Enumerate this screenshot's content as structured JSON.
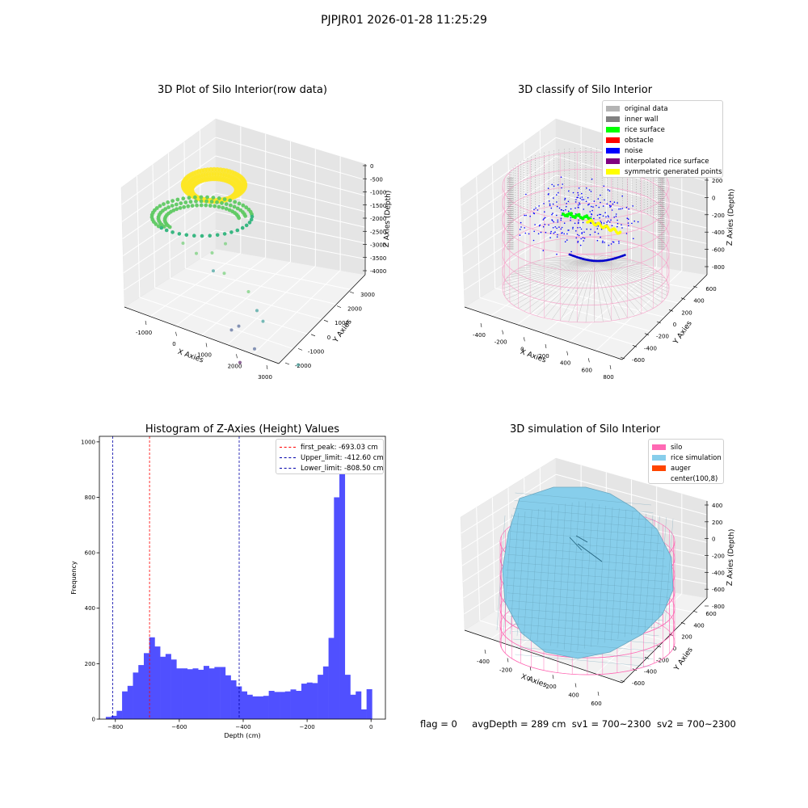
{
  "suptitle": "PJPJR01 2026-01-28 11:25:29",
  "footer": {
    "flag": "flag = 0",
    "avg_depth": "avgDepth = 289 cm",
    "sv1": "sv1 = 700~2300",
    "sv2": "sv2 = 700~2300"
  },
  "chart_data": [
    {
      "type": "scatter",
      "title": "3D Plot of Silo Interior(row data)",
      "xlabel": "X Axies",
      "ylabel": "Y Axies",
      "zlabel": "Z Axies (Depth)",
      "x_ticks": [
        "-1000",
        "0",
        "1000",
        "2000",
        "3000"
      ],
      "y_ticks": [
        "-2000",
        "-1000",
        "0",
        "1000",
        "2000",
        "3000"
      ],
      "z_ticks": [
        "0",
        "-500",
        "-1000",
        "-1500",
        "-2000",
        "-2500",
        "-3000",
        "-3500",
        "-4000"
      ],
      "colormap_colors": [
        "#440154",
        "#3b528b",
        "#21918c",
        "#5ec962",
        "#fde725"
      ],
      "sample_points": [
        {
          "x": -800,
          "y": -300,
          "z": -1400
        },
        {
          "x": -500,
          "y": -200,
          "z": -1500
        },
        {
          "x": -100,
          "y": 0,
          "z": -1700
        },
        {
          "x": 200,
          "y": 300,
          "z": -1600
        },
        {
          "x": 0,
          "y": 500,
          "z": -1200
        },
        {
          "x": 300,
          "y": 600,
          "z": -900
        },
        {
          "x": 1000,
          "y": 1500,
          "z": -1500
        },
        {
          "x": 1300,
          "y": 2000,
          "z": -1700
        },
        {
          "x": 1500,
          "y": 2300,
          "z": -1800
        },
        {
          "x": 500,
          "y": 300,
          "z": -2600
        },
        {
          "x": 2300,
          "y": 2600,
          "z": -2400
        },
        {
          "x": 100,
          "y": -700,
          "z": -3000
        },
        {
          "x": 800,
          "y": 200,
          "z": -3000
        },
        {
          "x": 200,
          "y": -1000,
          "z": -3700
        }
      ]
    },
    {
      "type": "scatter",
      "title": "3D classify of Silo Interior",
      "xlabel": "X Axies",
      "ylabel": "Y Axies",
      "zlabel": "Z Axies (Depth)",
      "x_ticks": [
        "-400",
        "-200",
        "0",
        "200",
        "400",
        "600",
        "800"
      ],
      "y_ticks": [
        "-600",
        "-400",
        "-200",
        "0",
        "200",
        "400",
        "600"
      ],
      "z_ticks": [
        "200",
        "0",
        "-200",
        "-400",
        "-600",
        "-800"
      ],
      "legend_position": "top-right",
      "legend": [
        {
          "label": "original data",
          "color": "#b4b4b4"
        },
        {
          "label": "inner wall",
          "color": "#808080"
        },
        {
          "label": "rice surface",
          "color": "#00ff00"
        },
        {
          "label": "obstacle",
          "color": "#ff0000"
        },
        {
          "label": "noise",
          "color": "#0000ff"
        },
        {
          "label": "interpolated rice surface",
          "color": "#800080"
        },
        {
          "label": "symmetric generated points",
          "color": "#ffff00"
        }
      ]
    },
    {
      "type": "bar",
      "title": "Histogram of Z-Axies (Height) Values",
      "xlabel": "Depth (cm)",
      "ylabel": "Frequency",
      "x_ticks": [
        -800,
        -600,
        -400,
        -200,
        0
      ],
      "y_ticks": [
        0,
        200,
        400,
        600,
        800,
        1000
      ],
      "xlim": [
        -850,
        45
      ],
      "ylim": [
        0,
        1020
      ],
      "bar_color": "#5050ff",
      "bin_start": -830,
      "bin_width": 17,
      "values": [
        8,
        12,
        30,
        100,
        120,
        168,
        195,
        238,
        295,
        262,
        225,
        235,
        215,
        183,
        183,
        180,
        183,
        178,
        192,
        183,
        188,
        188,
        158,
        140,
        118,
        100,
        88,
        82,
        82,
        84,
        102,
        98,
        98,
        100,
        107,
        102,
        128,
        132,
        130,
        160,
        190,
        293,
        800,
        958,
        160,
        88,
        100,
        35,
        108
      ],
      "legend_position": "top-right",
      "vlines": [
        {
          "label": "first_peak: -693.03 cm",
          "x": -693.03,
          "color": "#ff0000"
        },
        {
          "label": "Upper_limit: -412.60 cm",
          "x": -412.6,
          "color": "#0000aa"
        },
        {
          "label": "Lower_limit: -808.50 cm",
          "x": -808.5,
          "color": "#0000aa"
        }
      ]
    },
    {
      "type": "other",
      "title": "3D simulation of Silo Interior",
      "xlabel": "X Axies",
      "ylabel": "Y Axies",
      "zlabel": "Z Axies (Depth)",
      "x_ticks": [
        "-400",
        "-200",
        "0",
        "200",
        "400",
        "600"
      ],
      "y_ticks": [
        "-600",
        "-400",
        "-200",
        "0",
        "200",
        "400",
        "600"
      ],
      "z_ticks": [
        "400",
        "200",
        "0",
        "-200",
        "-400",
        "-600",
        "-800"
      ],
      "legend_position": "top-right",
      "legend": [
        {
          "label": "silo",
          "color": "#ff69b4"
        },
        {
          "label": "rice simulation",
          "color": "#87ceeb"
        },
        {
          "label": "auger",
          "color": "#ff4500"
        },
        {
          "label": "center(100,8)",
          "color": "#ffffff"
        }
      ]
    }
  ]
}
